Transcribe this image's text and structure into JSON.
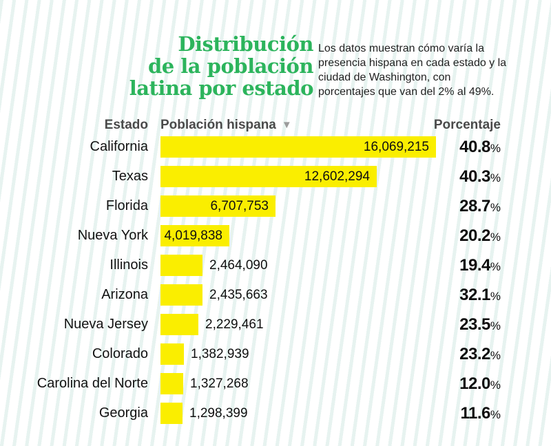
{
  "header": {
    "title_lines": [
      "Distribución",
      "de la población",
      "latina por estado"
    ],
    "subtitle": "Los datos muestran cómo varía la presencia hispana en cada estado y la ciudad de Washington, con porcentajes que van del 2% al 49%."
  },
  "table": {
    "col_state": "Estado",
    "col_population": "Población hispana",
    "sort_glyph": "▼",
    "col_percentage": "Porcentaje",
    "percent_sign": "%"
  },
  "chart_data": {
    "type": "bar",
    "orientation": "horizontal",
    "title": "Distribución de la población latina por estado",
    "categories": [
      "California",
      "Texas",
      "Florida",
      "Nueva York",
      "Illinois",
      "Arizona",
      "Nueva Jersey",
      "Colorado",
      "Carolina del Norte",
      "Georgia"
    ],
    "series": [
      {
        "name": "Población hispana",
        "values": [
          16069215,
          12602294,
          6707753,
          4019838,
          2464090,
          2435663,
          2229461,
          1382939,
          1327268,
          1298399
        ],
        "labels": [
          "16,069,215",
          "12,602,294",
          "6,707,753",
          "4,019,838",
          "2,464,090",
          "2,435,663",
          "2,229,461",
          "1,382,939",
          "1,327,268",
          "1,298,399"
        ]
      },
      {
        "name": "Porcentaje",
        "values": [
          40.8,
          40.3,
          28.7,
          20.2,
          19.4,
          32.1,
          23.5,
          23.2,
          12.0,
          11.6
        ],
        "labels": [
          "40.8%",
          "40.3%",
          "28.7%",
          "20.2%",
          "19.4%",
          "32.1%",
          "23.5%",
          "23.2%",
          "12.0%",
          "11.6%"
        ]
      }
    ],
    "xlim": [
      0,
      16069215
    ],
    "grid": false,
    "legend": false,
    "bar_color": "#FAEE00"
  },
  "colors": {
    "accent-green": "#2CB45C",
    "bar-yellow": "#FAEE00",
    "header-gray": "#4A4A4A",
    "sort-gray": "#9B9B9B",
    "text-dark": "#121212",
    "stripe": "#E7F3F0"
  }
}
